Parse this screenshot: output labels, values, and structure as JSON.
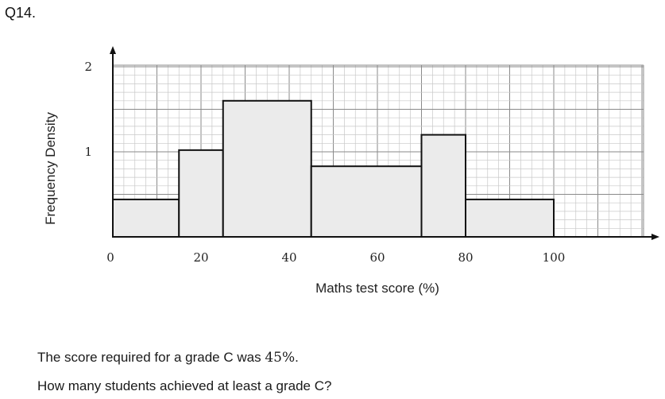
{
  "question": {
    "number": "Q14.",
    "line1_before": "The score required for a grade C was ",
    "line1_value": "45%",
    "line1_after": ".",
    "line2": "How many students achieved at least a grade C?"
  },
  "colors": {
    "bar_fill": "#ebebeb",
    "bar_stroke": "#111111",
    "grid_minor": "#c8c8c8",
    "grid_major": "#8a8a8a"
  },
  "chart_data": {
    "type": "bar",
    "title": "",
    "xlabel": "Maths test score (%)",
    "ylabel": "Frequency Density",
    "xlim": [
      0,
      120
    ],
    "ylim": [
      0,
      2.2
    ],
    "x_ticks": [
      0,
      20,
      40,
      60,
      80,
      100
    ],
    "y_ticks": [
      1,
      2
    ],
    "grid": true,
    "bins": [
      {
        "from": 0,
        "to": 15,
        "density": 0.44
      },
      {
        "from": 15,
        "to": 25,
        "density": 1.02
      },
      {
        "from": 25,
        "to": 45,
        "density": 1.6
      },
      {
        "from": 45,
        "to": 70,
        "density": 0.83
      },
      {
        "from": 70,
        "to": 80,
        "density": 1.2
      },
      {
        "from": 80,
        "to": 100,
        "density": 0.44
      }
    ]
  }
}
